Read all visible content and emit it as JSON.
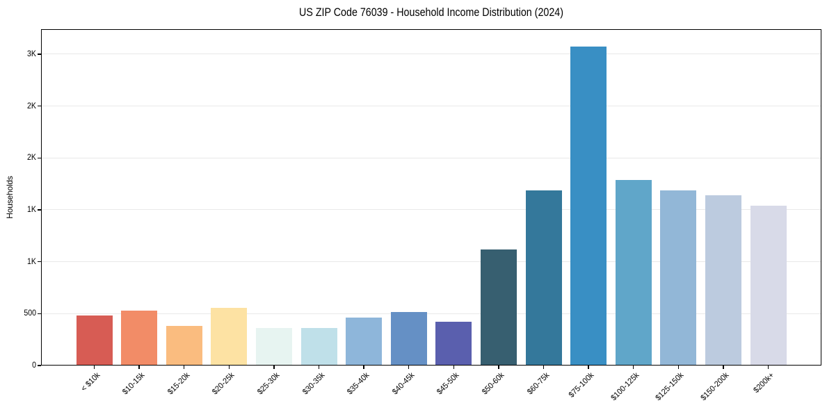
{
  "chart_data": {
    "type": "bar",
    "title": "US ZIP Code 76039 - Household Income Distribution (2024)",
    "xlabel": "",
    "ylabel": "Households",
    "categories": [
      "< $10k",
      "$10-15k",
      "$15-20k",
      "$20-25k",
      "$25-30k",
      "$30-35k",
      "$35-40k",
      "$40-45k",
      "$45-50k",
      "$50-60k",
      "$60-75k",
      "$75-100k",
      "$100-125k",
      "$125-150k",
      "$150-200k",
      "$200k+"
    ],
    "values": [
      480,
      530,
      380,
      555,
      360,
      365,
      460,
      515,
      420,
      1120,
      1690,
      3075,
      1785,
      1690,
      1640,
      1540
    ],
    "bar_colors": [
      "#d75c54",
      "#f28c67",
      "#fabc7f",
      "#fde2a3",
      "#e7f4f1",
      "#bfe0e9",
      "#8eb6da",
      "#6590c5",
      "#5a5fae",
      "#375f70",
      "#34789b",
      "#398fc4",
      "#60a6c9",
      "#92b7d7",
      "#bccbdf",
      "#d8dae8"
    ],
    "ylim": [
      0,
      3240
    ],
    "yticks": [
      {
        "value": 0,
        "label": "0"
      },
      {
        "value": 500,
        "label": "500"
      },
      {
        "value": 1000,
        "label": "1K"
      },
      {
        "value": 1500,
        "label": "1K"
      },
      {
        "value": 2000,
        "label": "2K"
      },
      {
        "value": 2500,
        "label": "2K"
      },
      {
        "value": 3000,
        "label": "3K"
      }
    ],
    "grid": "horizontal",
    "gridline_color": "#e9e9e9",
    "axis_color": "#000000",
    "legend": "none"
  }
}
